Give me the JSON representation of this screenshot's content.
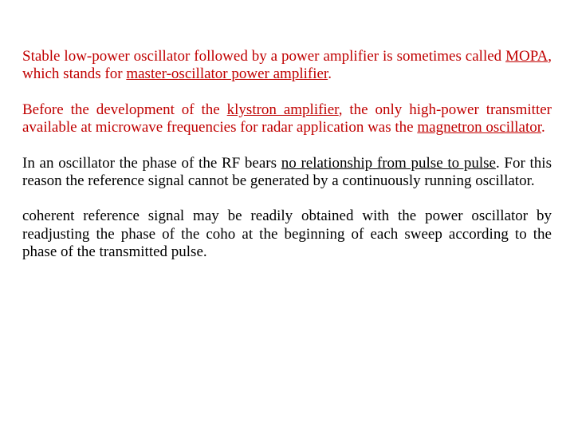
{
  "colors": {
    "red": "#c00000",
    "black": "#000000",
    "background": "#ffffff"
  },
  "typography": {
    "font_family": "Times New Roman",
    "font_size_pt": 14,
    "line_height": 1.18,
    "alignment": "justify"
  },
  "paragraphs": [
    {
      "color": "red",
      "runs": [
        {
          "t": "Stable low-power oscillator followed by a power amplifier is sometimes called "
        },
        {
          "t": "MOPA",
          "u": true
        },
        {
          "t": ", which stands for "
        },
        {
          "t": "master-oscillator power amplifier",
          "u": true
        },
        {
          "t": "."
        }
      ]
    },
    {
      "color": "red",
      "runs": [
        {
          "t": "Before the development of the "
        },
        {
          "t": "klystron amplifier",
          "u": true
        },
        {
          "t": ", the only high-power transmitter available at microwave frequencies for radar application was the "
        },
        {
          "t": "magnetron oscillator",
          "u": true
        },
        {
          "t": "."
        }
      ]
    },
    {
      "color": "black",
      "runs": [
        {
          "t": "In an oscillator the phase of the RF bears "
        },
        {
          "t": "no relationship from pulse to pulse",
          "u": true
        },
        {
          "t": ". For this reason the reference signal cannot be generated by a continuously running oscillator."
        }
      ]
    },
    {
      "color": "black",
      "runs": [
        {
          "t": "coherent reference signal may be readily obtained with the power oscillator by readjusting the phase of the coho at the beginning of each sweep according to the phase of the transmitted pulse."
        }
      ]
    }
  ]
}
